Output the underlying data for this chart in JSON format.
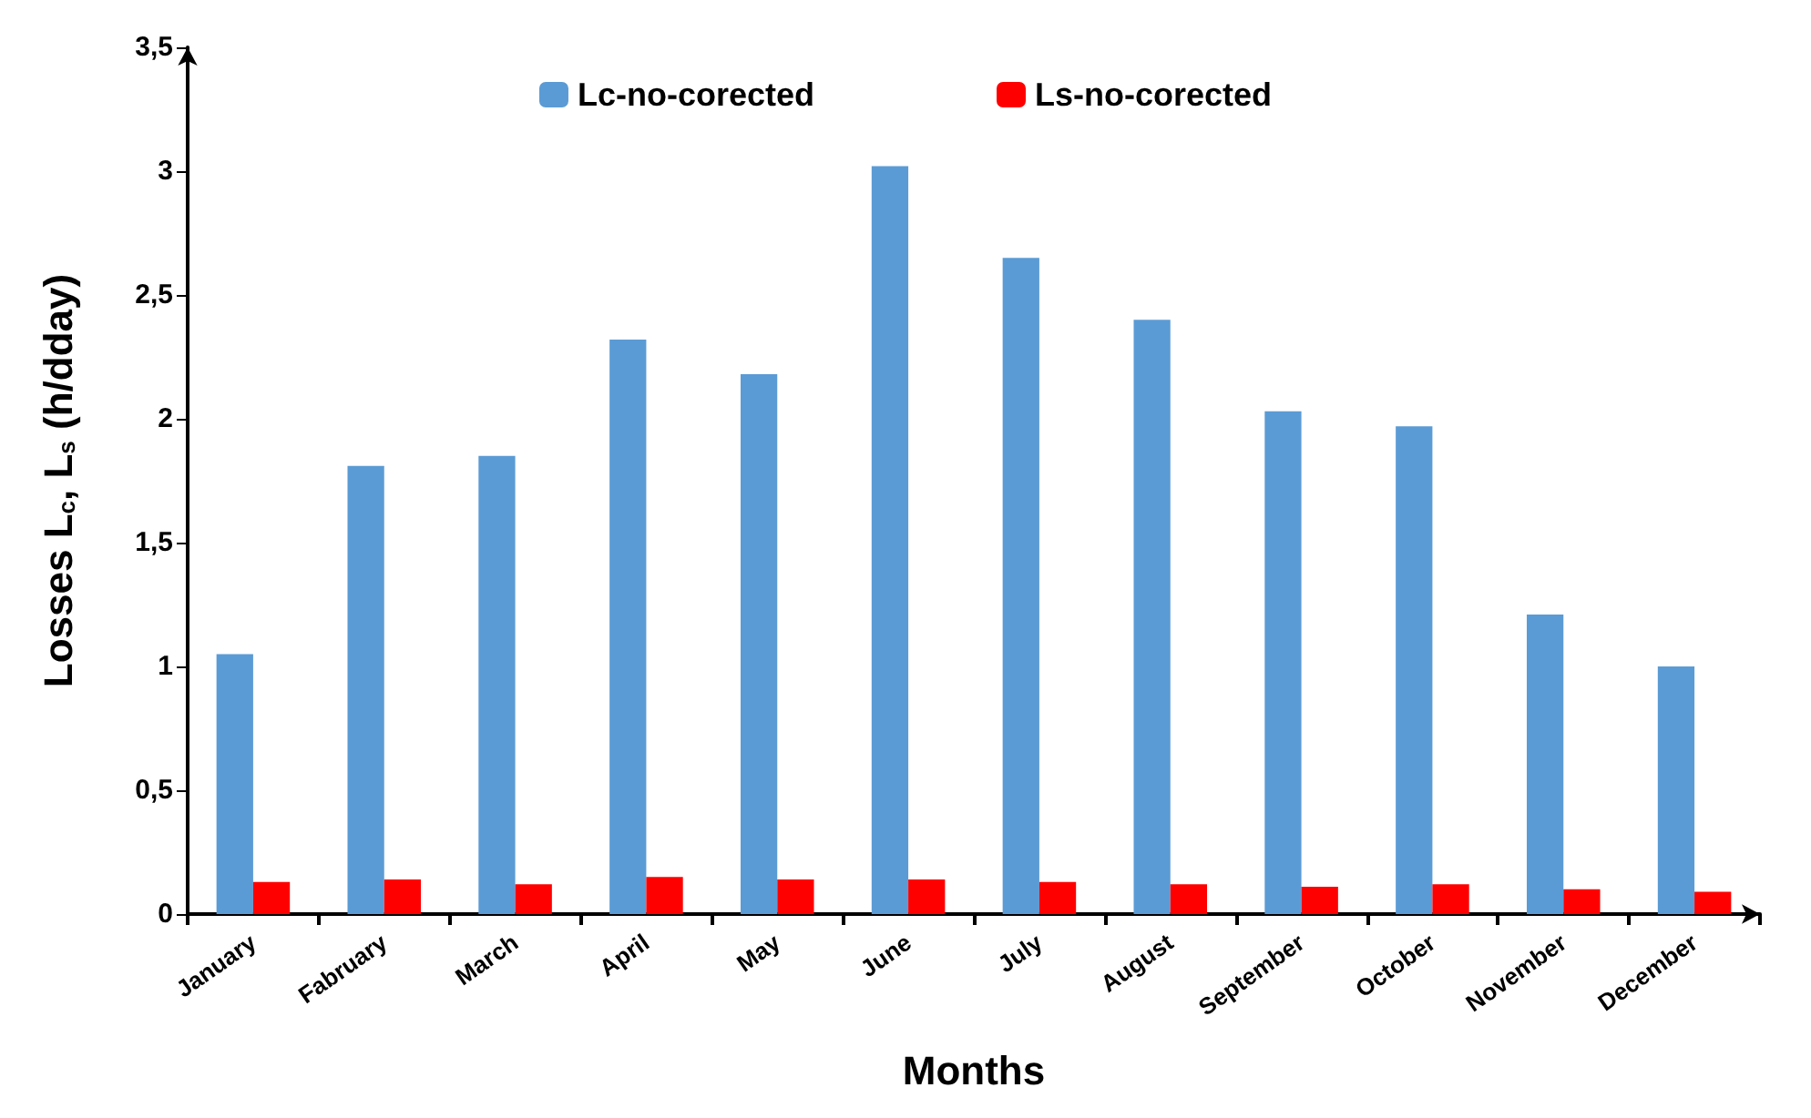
{
  "chart_data": {
    "type": "bar",
    "xlabel": "Months",
    "ylabel": "Losses L$_{c}$, L$_{s}$ (h/dday)",
    "categories": [
      "January",
      "Fabruary",
      "March",
      "April",
      "May",
      "June",
      "July",
      "August",
      "September",
      "October",
      "November",
      "December"
    ],
    "series": [
      {
        "name": "Lc-no-corected",
        "color": "#5b9bd5",
        "values": [
          1.05,
          1.81,
          1.85,
          2.32,
          2.18,
          3.02,
          2.65,
          2.4,
          2.03,
          1.97,
          1.21,
          1.0
        ]
      },
      {
        "name": "Ls-no-corected",
        "color": "#ff0000",
        "values": [
          0.13,
          0.14,
          0.12,
          0.15,
          0.14,
          0.14,
          0.13,
          0.12,
          0.11,
          0.12,
          0.1,
          0.09
        ]
      }
    ],
    "ylim": [
      0,
      3.5
    ],
    "yticks": [
      0,
      {
        "value": 0.5,
        "label": "0,5"
      },
      1,
      {
        "value": 1.5,
        "label": "1,5"
      },
      2,
      {
        "value": 2.5,
        "label": "2,5"
      },
      3,
      {
        "value": 3.5,
        "label": "3,5"
      }
    ],
    "legend": "top",
    "grid": false
  }
}
